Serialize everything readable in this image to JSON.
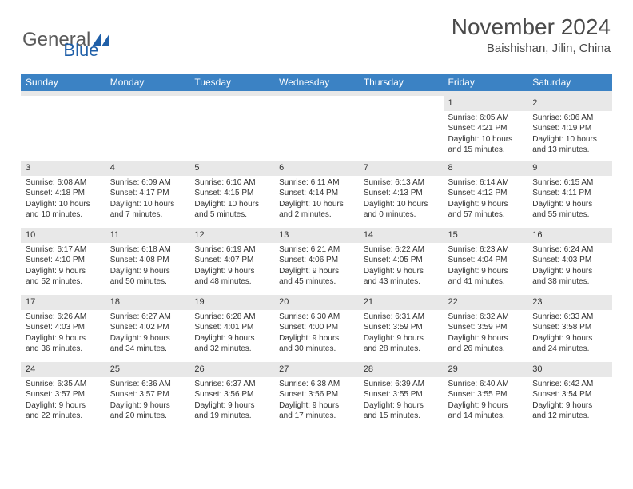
{
  "logo": {
    "word1": "General",
    "word2": "Blue"
  },
  "title": "November 2024",
  "subtitle": "Baishishan, Jilin, China",
  "colors": {
    "header_bg": "#3b82c4",
    "header_text": "#ffffff",
    "daynum_bg": "#e8e8e8",
    "body_text": "#333333",
    "logo_gray": "#5a5a5a",
    "logo_blue": "#1f5fa8"
  },
  "weekdays": [
    "Sunday",
    "Monday",
    "Tuesday",
    "Wednesday",
    "Thursday",
    "Friday",
    "Saturday"
  ],
  "weeks": [
    [
      {
        "n": "",
        "sr": "",
        "ss": "",
        "dl": ""
      },
      {
        "n": "",
        "sr": "",
        "ss": "",
        "dl": ""
      },
      {
        "n": "",
        "sr": "",
        "ss": "",
        "dl": ""
      },
      {
        "n": "",
        "sr": "",
        "ss": "",
        "dl": ""
      },
      {
        "n": "",
        "sr": "",
        "ss": "",
        "dl": ""
      },
      {
        "n": "1",
        "sr": "Sunrise: 6:05 AM",
        "ss": "Sunset: 4:21 PM",
        "dl": "Daylight: 10 hours and 15 minutes."
      },
      {
        "n": "2",
        "sr": "Sunrise: 6:06 AM",
        "ss": "Sunset: 4:19 PM",
        "dl": "Daylight: 10 hours and 13 minutes."
      }
    ],
    [
      {
        "n": "3",
        "sr": "Sunrise: 6:08 AM",
        "ss": "Sunset: 4:18 PM",
        "dl": "Daylight: 10 hours and 10 minutes."
      },
      {
        "n": "4",
        "sr": "Sunrise: 6:09 AM",
        "ss": "Sunset: 4:17 PM",
        "dl": "Daylight: 10 hours and 7 minutes."
      },
      {
        "n": "5",
        "sr": "Sunrise: 6:10 AM",
        "ss": "Sunset: 4:15 PM",
        "dl": "Daylight: 10 hours and 5 minutes."
      },
      {
        "n": "6",
        "sr": "Sunrise: 6:11 AM",
        "ss": "Sunset: 4:14 PM",
        "dl": "Daylight: 10 hours and 2 minutes."
      },
      {
        "n": "7",
        "sr": "Sunrise: 6:13 AM",
        "ss": "Sunset: 4:13 PM",
        "dl": "Daylight: 10 hours and 0 minutes."
      },
      {
        "n": "8",
        "sr": "Sunrise: 6:14 AM",
        "ss": "Sunset: 4:12 PM",
        "dl": "Daylight: 9 hours and 57 minutes."
      },
      {
        "n": "9",
        "sr": "Sunrise: 6:15 AM",
        "ss": "Sunset: 4:11 PM",
        "dl": "Daylight: 9 hours and 55 minutes."
      }
    ],
    [
      {
        "n": "10",
        "sr": "Sunrise: 6:17 AM",
        "ss": "Sunset: 4:10 PM",
        "dl": "Daylight: 9 hours and 52 minutes."
      },
      {
        "n": "11",
        "sr": "Sunrise: 6:18 AM",
        "ss": "Sunset: 4:08 PM",
        "dl": "Daylight: 9 hours and 50 minutes."
      },
      {
        "n": "12",
        "sr": "Sunrise: 6:19 AM",
        "ss": "Sunset: 4:07 PM",
        "dl": "Daylight: 9 hours and 48 minutes."
      },
      {
        "n": "13",
        "sr": "Sunrise: 6:21 AM",
        "ss": "Sunset: 4:06 PM",
        "dl": "Daylight: 9 hours and 45 minutes."
      },
      {
        "n": "14",
        "sr": "Sunrise: 6:22 AM",
        "ss": "Sunset: 4:05 PM",
        "dl": "Daylight: 9 hours and 43 minutes."
      },
      {
        "n": "15",
        "sr": "Sunrise: 6:23 AM",
        "ss": "Sunset: 4:04 PM",
        "dl": "Daylight: 9 hours and 41 minutes."
      },
      {
        "n": "16",
        "sr": "Sunrise: 6:24 AM",
        "ss": "Sunset: 4:03 PM",
        "dl": "Daylight: 9 hours and 38 minutes."
      }
    ],
    [
      {
        "n": "17",
        "sr": "Sunrise: 6:26 AM",
        "ss": "Sunset: 4:03 PM",
        "dl": "Daylight: 9 hours and 36 minutes."
      },
      {
        "n": "18",
        "sr": "Sunrise: 6:27 AM",
        "ss": "Sunset: 4:02 PM",
        "dl": "Daylight: 9 hours and 34 minutes."
      },
      {
        "n": "19",
        "sr": "Sunrise: 6:28 AM",
        "ss": "Sunset: 4:01 PM",
        "dl": "Daylight: 9 hours and 32 minutes."
      },
      {
        "n": "20",
        "sr": "Sunrise: 6:30 AM",
        "ss": "Sunset: 4:00 PM",
        "dl": "Daylight: 9 hours and 30 minutes."
      },
      {
        "n": "21",
        "sr": "Sunrise: 6:31 AM",
        "ss": "Sunset: 3:59 PM",
        "dl": "Daylight: 9 hours and 28 minutes."
      },
      {
        "n": "22",
        "sr": "Sunrise: 6:32 AM",
        "ss": "Sunset: 3:59 PM",
        "dl": "Daylight: 9 hours and 26 minutes."
      },
      {
        "n": "23",
        "sr": "Sunrise: 6:33 AM",
        "ss": "Sunset: 3:58 PM",
        "dl": "Daylight: 9 hours and 24 minutes."
      }
    ],
    [
      {
        "n": "24",
        "sr": "Sunrise: 6:35 AM",
        "ss": "Sunset: 3:57 PM",
        "dl": "Daylight: 9 hours and 22 minutes."
      },
      {
        "n": "25",
        "sr": "Sunrise: 6:36 AM",
        "ss": "Sunset: 3:57 PM",
        "dl": "Daylight: 9 hours and 20 minutes."
      },
      {
        "n": "26",
        "sr": "Sunrise: 6:37 AM",
        "ss": "Sunset: 3:56 PM",
        "dl": "Daylight: 9 hours and 19 minutes."
      },
      {
        "n": "27",
        "sr": "Sunrise: 6:38 AM",
        "ss": "Sunset: 3:56 PM",
        "dl": "Daylight: 9 hours and 17 minutes."
      },
      {
        "n": "28",
        "sr": "Sunrise: 6:39 AM",
        "ss": "Sunset: 3:55 PM",
        "dl": "Daylight: 9 hours and 15 minutes."
      },
      {
        "n": "29",
        "sr": "Sunrise: 6:40 AM",
        "ss": "Sunset: 3:55 PM",
        "dl": "Daylight: 9 hours and 14 minutes."
      },
      {
        "n": "30",
        "sr": "Sunrise: 6:42 AM",
        "ss": "Sunset: 3:54 PM",
        "dl": "Daylight: 9 hours and 12 minutes."
      }
    ]
  ]
}
